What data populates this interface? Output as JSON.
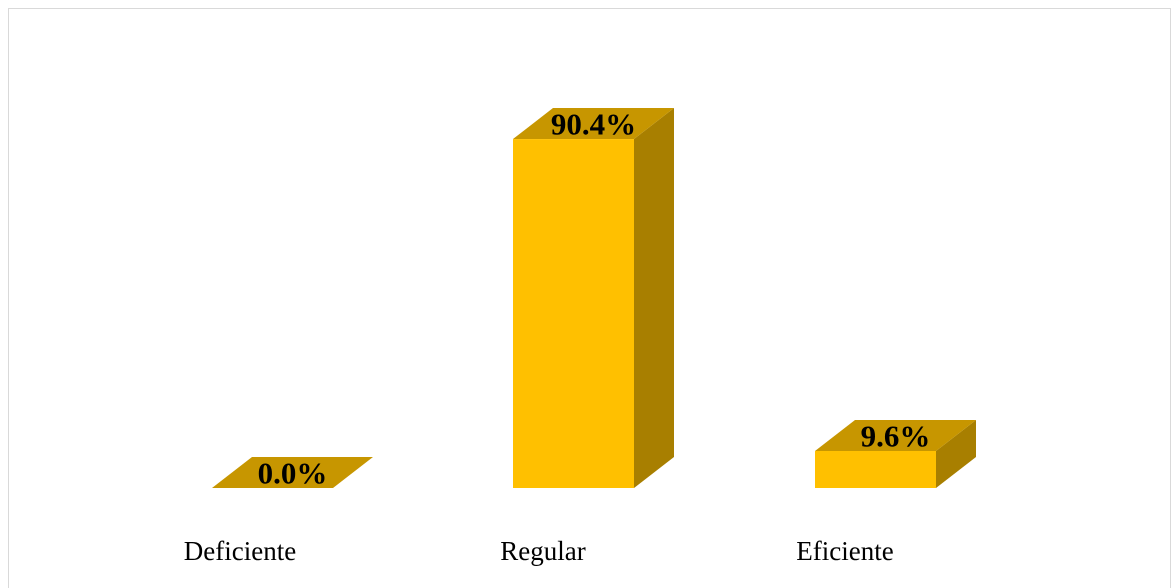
{
  "chart_data": {
    "type": "bar",
    "style": "3d-column",
    "categories": [
      "Deficiente",
      "Regular",
      "Eficiente"
    ],
    "values": [
      0.0,
      90.4,
      9.6
    ],
    "data_labels": [
      "0.0%",
      "90.4%",
      "9.6%"
    ],
    "title": "",
    "xlabel": "",
    "ylabel": "",
    "ylim": [
      0,
      100
    ],
    "grid": false,
    "legend": "none",
    "colors": {
      "front": "#FFC000",
      "top": "#C79600",
      "side": "#A87F00"
    }
  }
}
